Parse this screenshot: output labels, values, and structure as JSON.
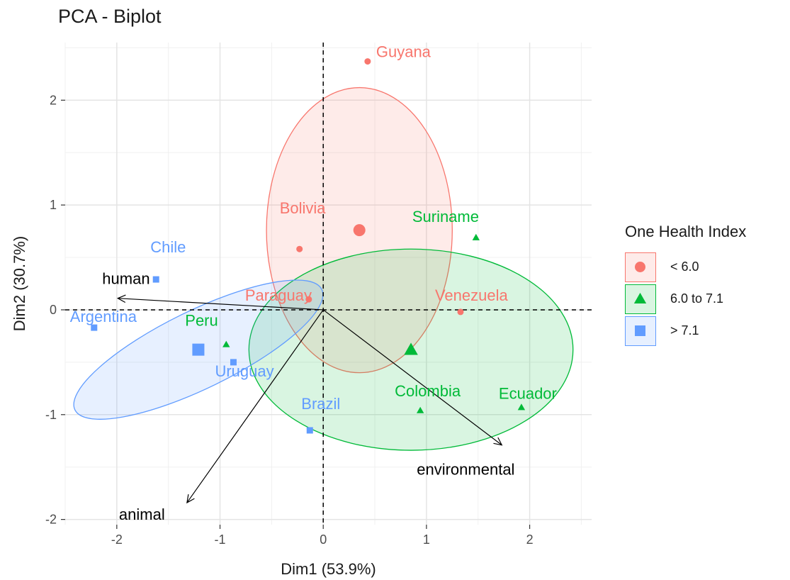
{
  "chart_data": {
    "type": "scatter",
    "title": "PCA - Biplot",
    "xlabel": "Dim1 (53.9%)",
    "ylabel": "Dim2 (30.7%)",
    "xlim": [
      -2.5,
      2.6
    ],
    "ylim": [
      -2.05,
      2.55
    ],
    "x_ticks": [
      -2,
      -1,
      0,
      1,
      2
    ],
    "y_ticks": [
      -2,
      -1,
      0,
      1,
      2
    ],
    "x_tick_labels": [
      "-2",
      "-1",
      "0",
      "1",
      "2"
    ],
    "y_tick_labels": [
      "-2",
      "-1",
      "0",
      "1",
      "2"
    ],
    "grid": true,
    "legend": {
      "title": "One Health Index",
      "position": "right",
      "items": [
        {
          "label": "< 6.0",
          "color": "#F8766D",
          "shape": "circle"
        },
        {
          "label": "6.0 to 7.1",
          "color": "#00BA38",
          "shape": "triangle"
        },
        {
          "label": "> 7.1",
          "color": "#619CFF",
          "shape": "square"
        }
      ]
    },
    "series": [
      {
        "name": "< 6.0",
        "color": "#F8766D",
        "shape": "circle",
        "points": [
          {
            "label": "Guyana",
            "x": 0.43,
            "y": 2.37
          },
          {
            "label": "Bolivia",
            "x": -0.23,
            "y": 0.58
          },
          {
            "label": "Paraguay",
            "x": -0.14,
            "y": 0.1
          },
          {
            "label": "Venezuela",
            "x": 1.33,
            "y": -0.02
          }
        ],
        "centroid": {
          "x": 0.35,
          "y": 0.76
        },
        "ellipse": {
          "cx": 0.35,
          "cy": 0.76,
          "rx": 0.9,
          "ry": 1.36
        }
      },
      {
        "name": "6.0 to 7.1",
        "color": "#00BA38",
        "shape": "triangle",
        "points": [
          {
            "label": "Suriname",
            "x": 1.48,
            "y": 0.69
          },
          {
            "label": "Peru",
            "x": -0.94,
            "y": -0.33
          },
          {
            "label": "Colombia",
            "x": 0.94,
            "y": -0.96
          },
          {
            "label": "Ecuador",
            "x": 1.92,
            "y": -0.93
          }
        ],
        "centroid": {
          "x": 0.85,
          "y": -0.38
        },
        "ellipse": {
          "cx": 0.85,
          "cy": -0.38,
          "rx": 1.57,
          "ry": 0.96
        }
      },
      {
        "name": "> 7.1",
        "color": "#619CFF",
        "shape": "square",
        "points": [
          {
            "label": "Chile",
            "x": -1.62,
            "y": 0.29
          },
          {
            "label": "Argentina",
            "x": -2.22,
            "y": -0.17
          },
          {
            "label": "Uruguay",
            "x": -0.87,
            "y": -0.5
          },
          {
            "label": "Brazil",
            "x": -0.13,
            "y": -1.15
          }
        ],
        "centroid": {
          "x": -1.21,
          "y": -0.38
        },
        "ellipse": {
          "cx": -1.21,
          "cy": -0.38,
          "rx": 1.33,
          "ry": 0.37,
          "rotation_deg": -26
        }
      }
    ],
    "variables": [
      {
        "label": "human",
        "x": -1.99,
        "y": 0.11
      },
      {
        "label": "animal",
        "x": -1.32,
        "y": -1.84
      },
      {
        "label": "environmental",
        "x": 1.73,
        "y": -1.29
      }
    ]
  }
}
